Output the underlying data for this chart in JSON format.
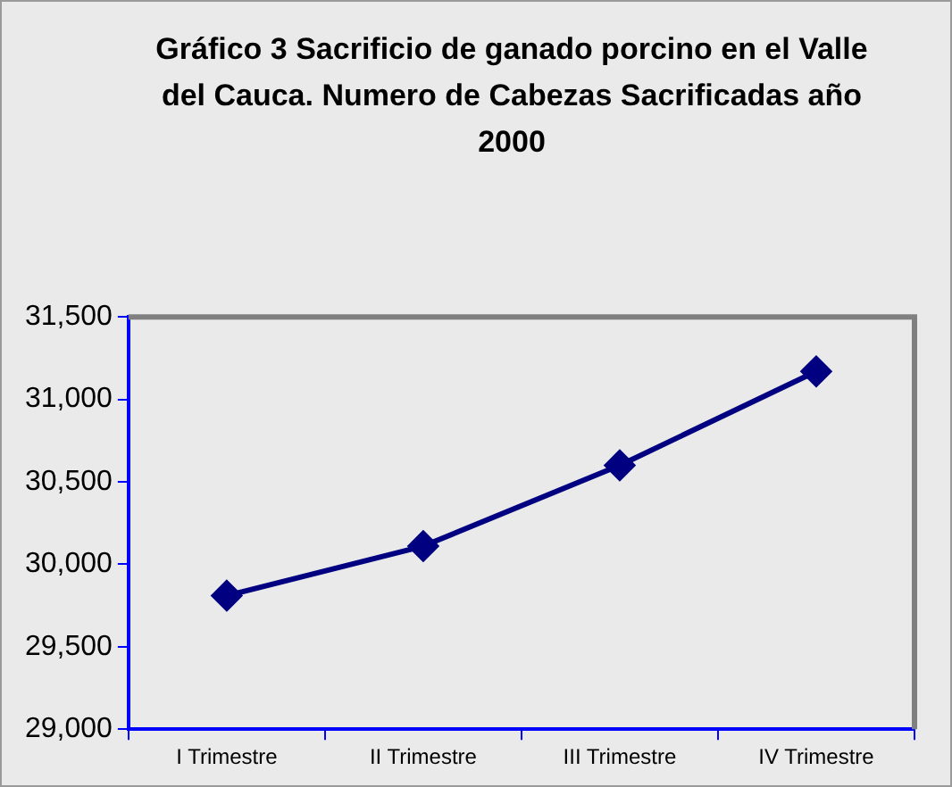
{
  "chart_data": {
    "type": "line",
    "title": "Gráfico 3 Sacrificio de ganado porcino en el Valle del Cauca. Numero de Cabezas Sacrificadas año 2000",
    "categories": [
      "I Trimestre",
      "II Trimestre",
      "III Trimestre",
      "IV Trimestre"
    ],
    "series": [
      {
        "color": "#000080",
        "values": [
          29810,
          30110,
          30600,
          31170
        ]
      }
    ],
    "ylim": [
      29000,
      31500
    ],
    "yticks": [
      {
        "value": 29000,
        "label": "29,000"
      },
      {
        "value": 29500,
        "label": "29,500"
      },
      {
        "value": 30000,
        "label": "30,000"
      },
      {
        "value": 30500,
        "label": "30,500"
      },
      {
        "value": 31000,
        "label": "31,000"
      },
      {
        "value": 31500,
        "label": "31,500"
      }
    ],
    "grid": false,
    "legend": false,
    "marker": "diamond",
    "line_style": "solid"
  }
}
